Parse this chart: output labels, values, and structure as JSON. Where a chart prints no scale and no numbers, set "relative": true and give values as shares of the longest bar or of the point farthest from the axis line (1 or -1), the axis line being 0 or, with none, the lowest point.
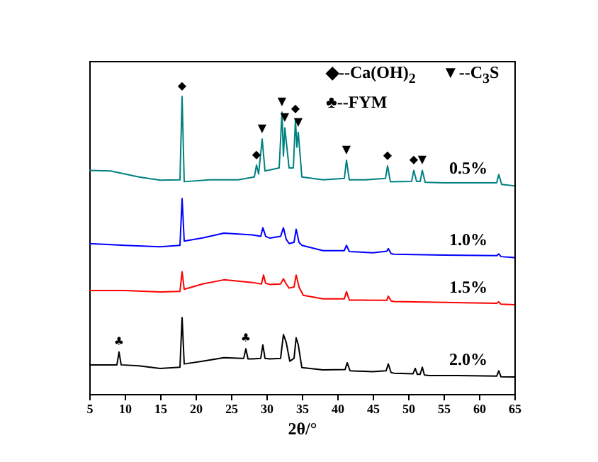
{
  "chart_data": {
    "type": "line",
    "relative": true,
    "xlabel": "2θ/°",
    "xlim": [
      5,
      65
    ],
    "xticks": [
      5,
      10,
      15,
      20,
      25,
      30,
      35,
      40,
      45,
      50,
      55,
      60,
      65
    ],
    "grid": false,
    "legend": false,
    "marker": "none",
    "line_style": "solid",
    "series": [
      {
        "name": "0.5%",
        "color": "#008080",
        "x": [
          5,
          8,
          12,
          15,
          17.8,
          18.1,
          18.4,
          22,
          26,
          28.3,
          28.6,
          28.9,
          29.4,
          29.8,
          31.8,
          32.2,
          32.4,
          32.6,
          33.2,
          33.8,
          34.1,
          34.3,
          34.5,
          35,
          38,
          41,
          41.3,
          41.7,
          44,
          46.8,
          47.1,
          47.5,
          50.5,
          50.8,
          51.2,
          51.7,
          52,
          52.4,
          55,
          59,
          62.5,
          62.8,
          63.2,
          65
        ],
        "values": [
          0.752,
          0.75,
          0.73,
          0.719,
          0.72,
          1.0,
          0.714,
          0.72,
          0.72,
          0.73,
          0.77,
          0.74,
          0.857,
          0.75,
          0.76,
          0.948,
          0.8,
          0.895,
          0.76,
          0.76,
          0.924,
          0.83,
          0.88,
          0.73,
          0.72,
          0.725,
          0.786,
          0.72,
          0.72,
          0.725,
          0.767,
          0.714,
          0.715,
          0.752,
          0.715,
          0.715,
          0.752,
          0.712,
          0.71,
          0.71,
          0.71,
          0.738,
          0.705,
          0.7
        ]
      },
      {
        "name": "1.0%",
        "color": "#0000ff",
        "x": [
          5,
          10,
          15,
          17.8,
          18.1,
          18.4,
          21,
          24,
          28,
          29.2,
          29.5,
          29.9,
          30.5,
          32,
          32.4,
          32.8,
          33.2,
          33.9,
          34.2,
          34.6,
          35,
          38,
          41,
          41.3,
          41.7,
          45,
          47,
          47.2,
          47.6,
          48,
          55,
          62.5,
          62.8,
          63.1,
          65
        ],
        "values": [
          0.506,
          0.5,
          0.495,
          0.5,
          0.657,
          0.514,
          0.525,
          0.541,
          0.535,
          0.53,
          0.559,
          0.53,
          0.524,
          0.53,
          0.559,
          0.52,
          0.506,
          0.51,
          0.554,
          0.51,
          0.5,
          0.482,
          0.482,
          0.5,
          0.479,
          0.475,
          0.48,
          0.489,
          0.472,
          0.47,
          0.467,
          0.465,
          0.471,
          0.462,
          0.459
        ]
      },
      {
        "name": "1.5%",
        "color": "#ff0000",
        "x": [
          5,
          10,
          15,
          17.8,
          18.1,
          18.4,
          21,
          24,
          28,
          29.3,
          29.6,
          29.9,
          30.5,
          32,
          32.4,
          32.8,
          33.2,
          33.9,
          34.2,
          34.6,
          35.2,
          38,
          41,
          41.3,
          41.7,
          45,
          47,
          47.2,
          47.6,
          48,
          55,
          62.5,
          62.8,
          63.1,
          65
        ],
        "values": [
          0.348,
          0.348,
          0.343,
          0.345,
          0.411,
          0.352,
          0.37,
          0.384,
          0.375,
          0.37,
          0.4,
          0.372,
          0.368,
          0.37,
          0.387,
          0.37,
          0.356,
          0.36,
          0.4,
          0.36,
          0.332,
          0.32,
          0.32,
          0.344,
          0.316,
          0.315,
          0.315,
          0.329,
          0.313,
          0.311,
          0.308,
          0.305,
          0.31,
          0.302,
          0.3
        ]
      },
      {
        "name": "2.0%",
        "color": "#000000",
        "x": [
          5,
          8.9,
          9.2,
          9.5,
          12,
          15,
          17.8,
          18.1,
          18.4,
          21,
          24,
          26.5,
          26.8,
          27.1,
          27.4,
          28,
          29.2,
          29.5,
          29.8,
          30.5,
          32,
          32.4,
          32.8,
          33.3,
          33.9,
          34.2,
          34.5,
          35,
          38,
          41.1,
          41.4,
          41.8,
          45,
          46.9,
          47.2,
          47.6,
          48,
          50.7,
          51,
          51.3,
          51.7,
          52,
          52.3,
          53,
          57,
          62.5,
          62.8,
          63.1,
          65
        ],
        "values": [
          0.098,
          0.098,
          0.141,
          0.098,
          0.095,
          0.086,
          0.09,
          0.257,
          0.101,
          0.11,
          0.122,
          0.12,
          0.12,
          0.152,
          0.118,
          0.118,
          0.12,
          0.165,
          0.12,
          0.118,
          0.12,
          0.2,
          0.173,
          0.11,
          0.12,
          0.189,
          0.165,
          0.089,
          0.081,
          0.082,
          0.105,
          0.078,
          0.075,
          0.078,
          0.101,
          0.072,
          0.07,
          0.068,
          0.086,
          0.066,
          0.066,
          0.09,
          0.064,
          0.062,
          0.062,
          0.06,
          0.078,
          0.058,
          0.057
        ]
      }
    ],
    "annotations": [
      "◆--Ca(OH)$_{2}$",
      "▼--C$_{3}$S",
      "♣--FYM",
      {
        "text": "◆",
        "x": 18.1,
        "y": 1.0
      },
      {
        "text": "◆",
        "x": 28.6,
        "y": 0.77
      },
      {
        "text": "▼",
        "x": 29.4,
        "y": 0.857
      },
      {
        "text": "▼",
        "x": 32.2,
        "y": 0.948
      },
      {
        "text": "▼",
        "x": 32.6,
        "y": 0.895
      },
      {
        "text": "◆",
        "x": 34.1,
        "y": 0.924
      },
      {
        "text": "▼",
        "x": 34.5,
        "y": 0.88
      },
      {
        "text": "▼",
        "x": 41.3,
        "y": 0.786
      },
      {
        "text": "◆",
        "x": 47.1,
        "y": 0.767
      },
      {
        "text": "◆",
        "x": 50.8,
        "y": 0.752
      },
      {
        "text": "▼",
        "x": 52.0,
        "y": 0.752
      },
      {
        "text": "♣",
        "x": 9.2,
        "y": 0.141
      },
      {
        "text": "♣",
        "x": 27.1,
        "y": 0.152
      }
    ]
  }
}
